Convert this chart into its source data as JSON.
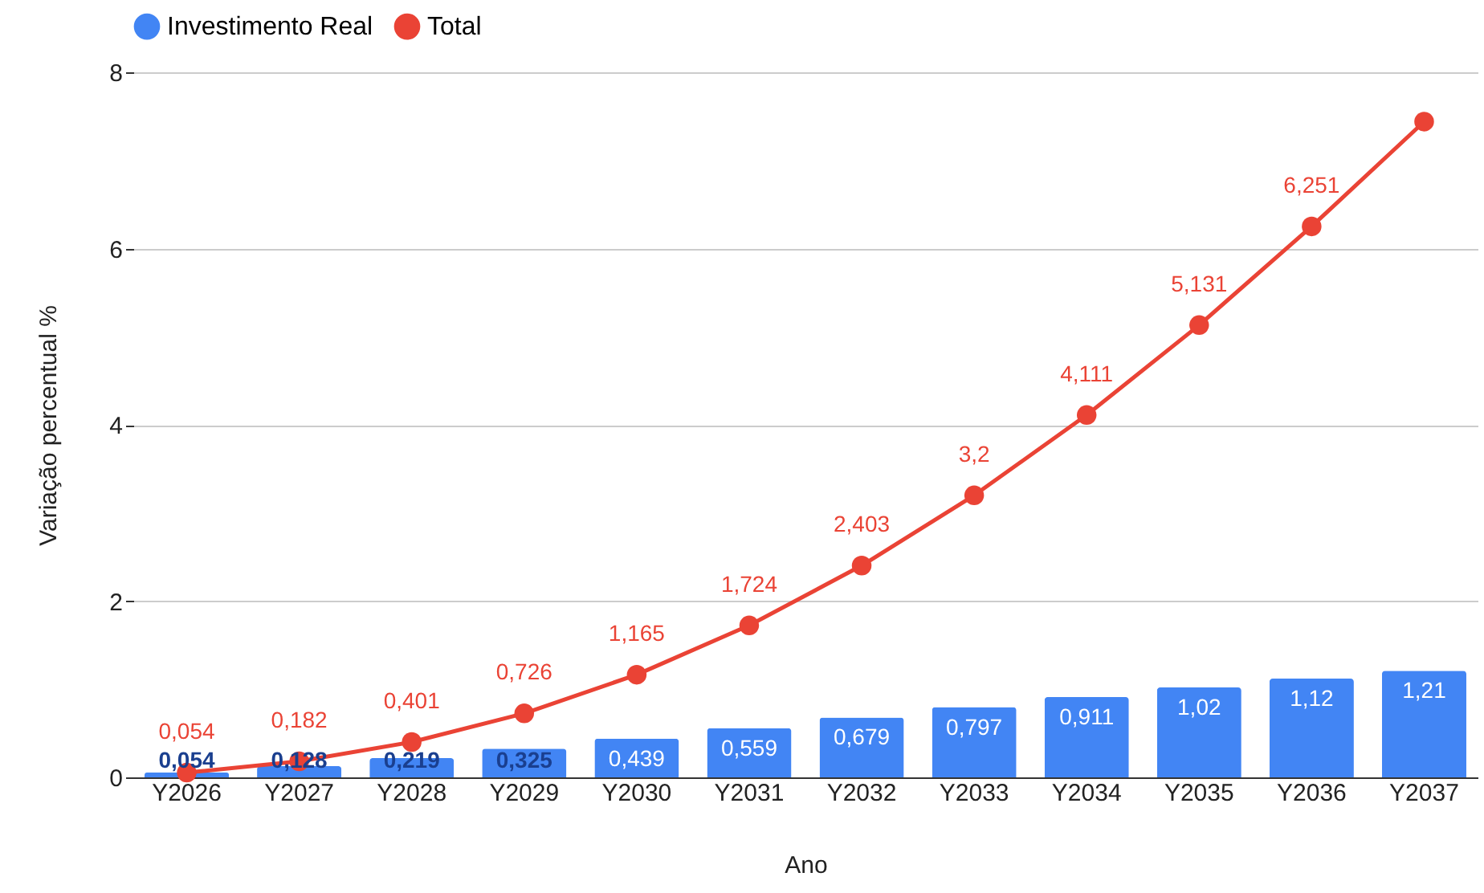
{
  "chart_data": {
    "type": "bar",
    "xlabel": "Ano",
    "ylabel": "Variação percentual %",
    "categories": [
      "Y2026",
      "Y2027",
      "Y2028",
      "Y2029",
      "Y2030",
      "Y2031",
      "Y2032",
      "Y2033",
      "Y2034",
      "Y2035",
      "Y2036",
      "Y2037"
    ],
    "series": [
      {
        "name": "Investimento Real",
        "color": "#4285f4",
        "values": [
          0.054,
          0.128,
          0.219,
          0.325,
          0.439,
          0.559,
          0.679,
          0.797,
          0.911,
          1.02,
          1.12,
          1.21
        ],
        "value_labels": [
          "0,054",
          "0,128",
          "0,219",
          "0,325",
          "0,439",
          "0,559",
          "0,679",
          "0,797",
          "0,911",
          "1,02",
          "1,12",
          "1,21"
        ]
      },
      {
        "name": "Total",
        "type": "line",
        "color": "#ea4335",
        "values": [
          0.054,
          0.182,
          0.401,
          0.726,
          1.165,
          1.724,
          2.403,
          3.2,
          4.111,
          5.131,
          6.251,
          7.44
        ],
        "value_labels": [
          "0,054",
          "0,182",
          "0,401",
          "0,726",
          "1,165",
          "1,724",
          "2,403",
          "3,2",
          "4,111",
          "5,131",
          "6,251",
          null
        ]
      }
    ],
    "ylim": [
      0,
      8
    ],
    "yticks": [
      0,
      2,
      4,
      6,
      8
    ],
    "grid": "y",
    "legend": "top",
    "marker": "circle"
  }
}
